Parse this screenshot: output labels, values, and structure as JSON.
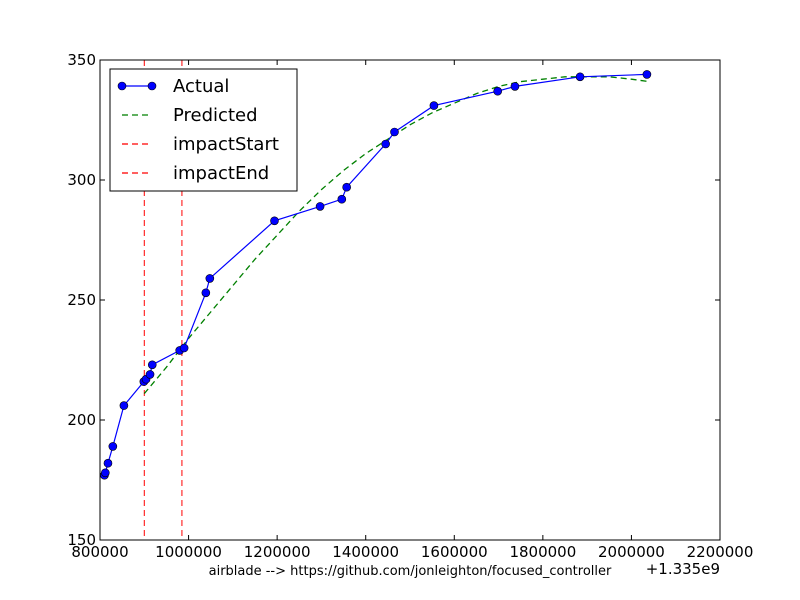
{
  "chart_data": {
    "type": "line",
    "xlim": [
      800000,
      2200000
    ],
    "ylim": [
      150,
      350
    ],
    "x_ticks": [
      800000,
      1000000,
      1200000,
      1400000,
      1600000,
      1800000,
      2000000,
      2200000
    ],
    "y_ticks": [
      150,
      200,
      250,
      300,
      350
    ],
    "x_offset_label": "+1.335e9",
    "caption": "airblade --> https://github.com/jonleighton/focused_controller",
    "grid": false,
    "legend_position": "top-left",
    "colors": {
      "actual": "#0000ff",
      "actual_marker": "#0000cc",
      "predicted": "#008000",
      "impact": "#ff0000"
    },
    "series": [
      {
        "name": "Actual",
        "style": "solid-with-markers",
        "x": [
          810000,
          812000,
          818000,
          829000,
          854000,
          899000,
          904000,
          913000,
          918000,
          980000,
          990000,
          1039000,
          1048000,
          1194000,
          1297000,
          1346000,
          1357000,
          1445000,
          1465000,
          1554000,
          1698000,
          1737000,
          1884000,
          2035000
        ],
        "y": [
          177,
          178,
          182,
          189,
          206,
          216,
          217,
          219,
          223,
          229,
          230,
          253,
          259,
          283,
          289,
          292,
          297,
          315,
          320,
          331,
          337,
          339,
          343,
          344
        ]
      },
      {
        "name": "Predicted",
        "style": "dashed",
        "x": [
          900000,
          950000,
          1000000,
          1050000,
          1100000,
          1150000,
          1200000,
          1250000,
          1300000,
          1350000,
          1400000,
          1450000,
          1500000,
          1550000,
          1600000,
          1650000,
          1700000,
          1750000,
          1800000,
          1850000,
          1900000,
          1950000,
          2000000,
          2040000
        ],
        "y": [
          211,
          222,
          234,
          245,
          256,
          267,
          277,
          287,
          296,
          304,
          311,
          317,
          323,
          328,
          332,
          336,
          339,
          341,
          342,
          343,
          343,
          343,
          342,
          341
        ]
      },
      {
        "name": "impactStart",
        "style": "vline-dashed",
        "x_value": 900000
      },
      {
        "name": "impactEnd",
        "style": "vline-dashed",
        "x_value": 985000
      }
    ]
  }
}
